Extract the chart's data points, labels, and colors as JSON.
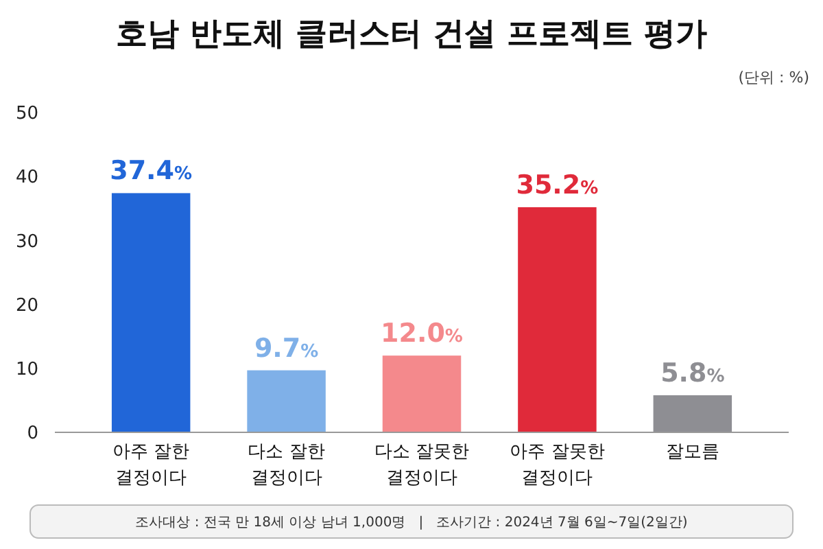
{
  "chart_data": {
    "type": "bar",
    "title": "호남 반도체 클러스터 건설 프로젝트 평가",
    "categories": [
      "아주 잘한\n결정이다",
      "다소 잘한\n결정이다",
      "다소 잘못한\n결정이다",
      "아주 잘못한\n결정이다",
      "잘모름"
    ],
    "values": [
      37.4,
      9.7,
      12.0,
      35.2,
      5.8
    ],
    "colors": [
      "#2166d8",
      "#7fb0e8",
      "#f4898c",
      "#e02a3a",
      "#8e8e93"
    ],
    "value_labels": [
      "37.4%",
      "9.7%",
      "12.0%",
      "35.2%",
      "5.8%"
    ],
    "ylim": [
      0,
      50
    ],
    "yticks": [
      0,
      10,
      20,
      30,
      40,
      50
    ],
    "grid": false,
    "annotations": [
      "(단위 : %)",
      "조사대상 : 전국 만 18세 이상 남녀 1,000명   |   조사기간 : 2024년 7월 6일~7일(2일간)"
    ]
  }
}
